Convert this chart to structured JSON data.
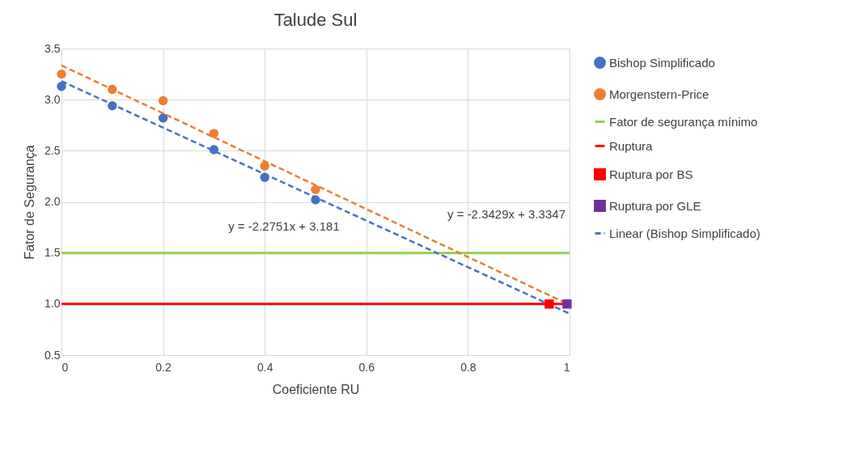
{
  "chart_data": {
    "type": "scatter",
    "title": "Talude Sul",
    "xlabel": "Coeficiente RU",
    "ylabel": "Fator de Segurança",
    "xlim": [
      0,
      1
    ],
    "xticks": [
      0,
      0.2,
      0.4,
      0.6,
      0.8,
      1
    ],
    "ylim": [
      0.5,
      3.5
    ],
    "yticks": [
      {
        "value": 0.5,
        "label": "0.5"
      },
      {
        "value": 1,
        "label": "1.0"
      },
      {
        "value": 1.5,
        "label": "1.5"
      },
      {
        "value": 2,
        "label": "2.0"
      },
      {
        "value": 2.5,
        "label": "2.5"
      },
      {
        "value": 3,
        "label": "3.0"
      },
      {
        "value": 3.5,
        "label": "3.5"
      }
    ],
    "grid": true,
    "legend": "right",
    "marker": "circle",
    "series": [
      {
        "name": "Bishop Simplificado",
        "color": "#4472c4",
        "x": [
          0,
          0.1,
          0.2,
          0.3,
          0.4,
          0.5
        ],
        "values": [
          3.13,
          2.94,
          2.82,
          2.51,
          2.24,
          2.02
        ]
      },
      {
        "name": "Morgenstern-Price",
        "color": "#ed7d31",
        "x": [
          0,
          0.1,
          0.2,
          0.3,
          0.4,
          0.5
        ],
        "values": [
          3.25,
          3.1,
          2.99,
          2.67,
          2.35,
          2.12
        ]
      },
      {
        "name": "Fator de segurança mínimo",
        "color": "#92d050",
        "type": "line",
        "marker": "none",
        "line_style": "solid",
        "x": [
          0,
          1
        ],
        "values": [
          1.5,
          1.5
        ]
      },
      {
        "name": "Ruptura",
        "color": "#ff0000",
        "type": "line",
        "marker": "none",
        "line_style": "solid",
        "x": [
          0,
          1
        ],
        "values": [
          1,
          1
        ]
      },
      {
        "name": "Ruptura por BS",
        "color": "#ff0000",
        "marker": "square",
        "x": [
          0.96
        ],
        "values": [
          1
        ]
      },
      {
        "name": "Ruptura por GLE",
        "color": "#7030a0",
        "marker": "square",
        "x": [
          0.995
        ],
        "values": [
          1
        ]
      },
      {
        "name": "Linear (Bishop Simplificado)",
        "color": "#4472c4",
        "type": "line",
        "marker": "none",
        "line_style": "dashed",
        "x": [
          0,
          1
        ],
        "values": [
          3.181,
          0.906
        ]
      },
      {
        "color": "#ed7d31",
        "type": "line",
        "marker": "none",
        "line_style": "dashed",
        "x": [
          0,
          1
        ],
        "values": [
          3.335,
          0.992
        ]
      }
    ],
    "annotations": [
      "y = -2.2751x + 3.181",
      "y = -2.3429x + 3.3347"
    ]
  }
}
